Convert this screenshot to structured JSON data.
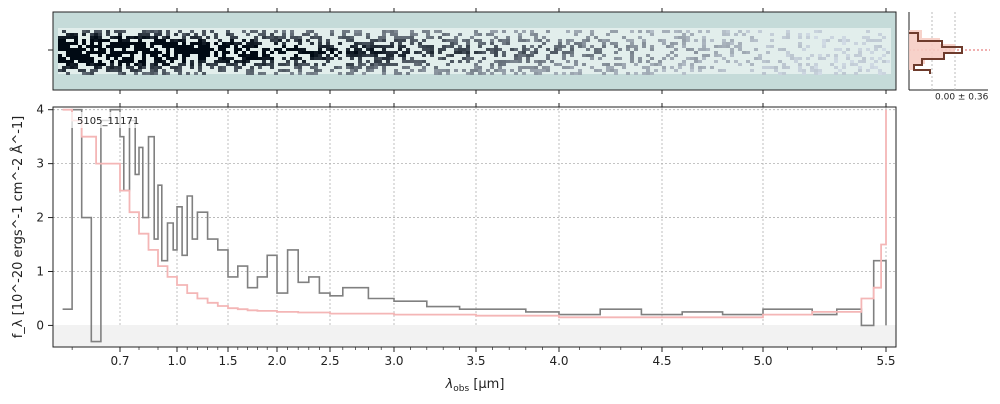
{
  "figure": {
    "object_label": "5105_11171",
    "profile_label": "0.00 ± 0.36"
  },
  "chart_data": {
    "type": "line",
    "xlabel_main": "λ",
    "xlabel_sub": "obs",
    "xlabel_unit": " [μm]",
    "ylabel": "f_λ [10^-20 ergs^-1 cm^-2 Å^-1]",
    "x_scale": "nonlinear (prism dispersion)",
    "xlim": [
      0.56,
      5.53
    ],
    "ylim": [
      -0.4,
      4.05
    ],
    "grid": true,
    "x_ticks": [
      0.7,
      1.0,
      1.5,
      2.0,
      2.5,
      3.0,
      3.5,
      4.0,
      4.5,
      5.0,
      5.5
    ],
    "x_tick_labels": [
      "0.7",
      "1.0",
      "1.5",
      "2.0",
      "2.5",
      "3.0",
      "3.5",
      "4.0",
      "4.5",
      "5.0",
      "5.5"
    ],
    "y_ticks": [
      0,
      1,
      2,
      3,
      4
    ],
    "y_tick_labels": [
      "0",
      "1",
      "2",
      "3",
      "4"
    ],
    "series": [
      {
        "color": "#808080",
        "style": "steps",
        "x": [
          0.58,
          0.6,
          0.62,
          0.64,
          0.66,
          0.68,
          0.7,
          0.72,
          0.75,
          0.78,
          0.8,
          0.82,
          0.85,
          0.88,
          0.9,
          0.92,
          0.95,
          0.98,
          1.0,
          1.05,
          1.1,
          1.15,
          1.2,
          1.3,
          1.4,
          1.5,
          1.6,
          1.7,
          1.8,
          1.9,
          2.0,
          2.1,
          2.2,
          2.3,
          2.4,
          2.5,
          2.6,
          2.8,
          3.0,
          3.2,
          3.4,
          3.6,
          3.8,
          4.0,
          4.2,
          4.4,
          4.6,
          4.8,
          5.0,
          5.2,
          5.3,
          5.4,
          5.45,
          5.5
        ],
        "y": [
          0.3,
          4.0,
          2.0,
          -0.3,
          3.8,
          4.0,
          3.5,
          2.5,
          3.8,
          2.8,
          3.3,
          2.0,
          3.5,
          1.6,
          2.6,
          1.2,
          1.9,
          1.4,
          2.2,
          1.3,
          2.4,
          1.6,
          2.1,
          1.6,
          1.4,
          0.9,
          1.1,
          0.7,
          0.9,
          1.3,
          0.6,
          1.4,
          0.8,
          0.9,
          0.6,
          0.55,
          0.7,
          0.5,
          0.45,
          0.35,
          0.3,
          0.3,
          0.25,
          0.2,
          0.3,
          0.2,
          0.25,
          0.2,
          0.3,
          0.2,
          0.3,
          0.0,
          1.2,
          0.0
        ]
      },
      {
        "color": "#f4b6b6",
        "style": "steps",
        "x": [
          0.58,
          0.6,
          0.62,
          0.65,
          0.7,
          0.75,
          0.8,
          0.85,
          0.9,
          0.95,
          1.0,
          1.1,
          1.2,
          1.3,
          1.4,
          1.5,
          1.6,
          1.7,
          1.8,
          2.0,
          2.2,
          2.5,
          3.0,
          3.5,
          4.0,
          4.5,
          5.0,
          5.2,
          5.4,
          5.45,
          5.48,
          5.5
        ],
        "y": [
          4.0,
          3.8,
          3.5,
          3.0,
          2.5,
          2.1,
          1.7,
          1.4,
          1.1,
          0.9,
          0.75,
          0.6,
          0.5,
          0.42,
          0.36,
          0.32,
          0.3,
          0.28,
          0.27,
          0.25,
          0.24,
          0.22,
          0.2,
          0.18,
          0.15,
          0.15,
          0.2,
          0.25,
          0.5,
          0.7,
          1.5,
          4.0
        ]
      }
    ]
  }
}
